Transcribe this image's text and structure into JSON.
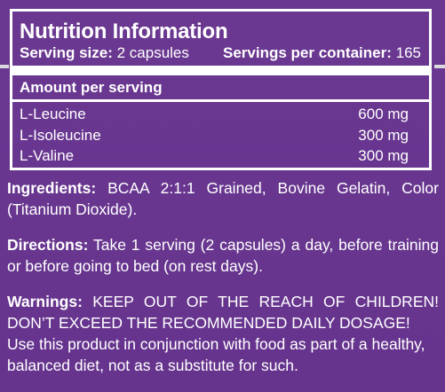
{
  "facts": {
    "title": "Nutrition Information",
    "serving_size_label": "Serving size:",
    "serving_size_value": "2 capsules",
    "servings_per_container_label": "Servings per container:",
    "servings_per_container_value": "165",
    "amount_header": "Amount per serving",
    "nutrients": [
      {
        "name": "L-Leucine",
        "amount": "600 mg"
      },
      {
        "name": "L-Isoleucine",
        "amount": "300 mg"
      },
      {
        "name": "L-Valine",
        "amount": "300 mg"
      }
    ]
  },
  "ingredients": {
    "label": "Ingredients:",
    "text": "BCAA 2:1:1 Grained, Bovine Gelatin, Color (Titanium Dioxide)."
  },
  "directions": {
    "label": "Directions:",
    "text": "Take 1 serving (2 capsules) a day, before training or before going to bed (on rest days)."
  },
  "warnings": {
    "label": "Warnings:",
    "text": "KEEP OUT OF THE REACH OF CHILDREN! DON’T EXCEED THE RECOMMENDED DAILY DOSAGE!",
    "note": "Use this product in conjunction with food as part of a healthy, balanced diet, not as a substitute for such."
  },
  "colors": {
    "background": "#68368f",
    "text": "#ffffff",
    "side_line": "#d9d9de"
  }
}
